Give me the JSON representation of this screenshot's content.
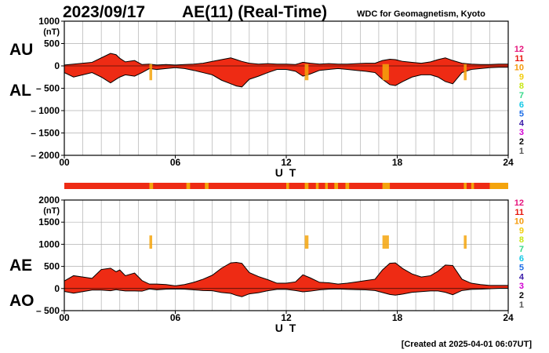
{
  "header": {
    "date": "2023/09/17",
    "title": "AE(11) (Real-Time)",
    "source": "WDC for Geomagnetism, Kyoto"
  },
  "footer": {
    "created": "[Created at 2025-04-01 06:07UT]"
  },
  "colors": {
    "fill_main": "#ee2b14",
    "fill_alt": "#f4a40c",
    "stations": [
      "#cccccc",
      "#555555",
      "#000000",
      "#d200d2",
      "#3b1ca8",
      "#1e6ee6",
      "#14c8e6",
      "#36d98a",
      "#c8e614",
      "#f2cc0c",
      "#f49a0c",
      "#e8170c",
      "#e6147c"
    ]
  },
  "station_count_labels": [
    "12",
    "11",
    "10",
    "9",
    "8",
    "7",
    "6",
    "5",
    "4",
    "3",
    "2",
    "1"
  ],
  "chart_data": [
    {
      "type": "area",
      "panel": "AU-AL",
      "series_labels": [
        "AU",
        "AL"
      ],
      "ylabel": "(nT)",
      "xlabel": "U T",
      "xlim": [
        0,
        24
      ],
      "ylim": [
        -2000,
        1000
      ],
      "yticks": [
        1000,
        500,
        0,
        -500,
        -1000,
        -1500,
        -2000
      ],
      "ytick_labels": [
        "1000",
        "500",
        "0",
        "– 500",
        "– 1000",
        "– 1500",
        "– 2000"
      ],
      "xticks": [
        0,
        6,
        12,
        18,
        24
      ],
      "xtick_labels": [
        "00",
        "06",
        "12",
        "18",
        "24"
      ],
      "grid": true,
      "x": [
        0,
        0.5,
        1,
        1.5,
        2,
        2.5,
        2.8,
        3,
        3.3,
        3.8,
        4.2,
        4.6,
        5,
        5.5,
        6,
        6.5,
        7,
        7.5,
        8,
        8.5,
        9,
        9.3,
        9.6,
        10,
        10.5,
        11,
        11.5,
        12,
        12.5,
        12.9,
        13.3,
        13.8,
        14.3,
        14.8,
        15.3,
        15.8,
        16.3,
        16.8,
        17.2,
        17.6,
        17.9,
        18.3,
        18.8,
        19.3,
        19.8,
        20.2,
        20.6,
        21,
        21.5,
        22,
        22.5,
        23,
        23.5,
        24
      ],
      "AU": [
        20,
        40,
        60,
        80,
        180,
        280,
        250,
        170,
        90,
        120,
        30,
        40,
        20,
        30,
        20,
        30,
        40,
        60,
        100,
        140,
        180,
        140,
        100,
        60,
        40,
        50,
        40,
        40,
        30,
        80,
        60,
        40,
        50,
        40,
        40,
        50,
        60,
        60,
        120,
        150,
        140,
        100,
        80,
        60,
        90,
        140,
        180,
        120,
        60,
        40,
        30,
        30,
        40,
        40
      ],
      "AL": [
        -150,
        -250,
        -200,
        -150,
        -250,
        -380,
        -300,
        -250,
        -200,
        -230,
        -150,
        -60,
        -80,
        -60,
        -40,
        -60,
        -100,
        -150,
        -200,
        -320,
        -400,
        -450,
        -470,
        -300,
        -230,
        -150,
        -80,
        -80,
        -120,
        -230,
        -180,
        -100,
        -80,
        -60,
        -80,
        -100,
        -120,
        -150,
        -300,
        -420,
        -440,
        -350,
        -250,
        -200,
        -200,
        -250,
        -350,
        -400,
        -150,
        -80,
        -60,
        -40,
        -30,
        -30
      ]
    },
    {
      "type": "area",
      "panel": "AE-AO",
      "series_labels": [
        "AE",
        "AO"
      ],
      "ylabel": "(nT)",
      "xlabel": "U T",
      "xlim": [
        0,
        24
      ],
      "ylim": [
        -500,
        2000
      ],
      "yticks": [
        2000,
        1500,
        1000,
        500,
        0,
        -500
      ],
      "ytick_labels": [
        "2000",
        "1500",
        "1000",
        "500",
        "0",
        "– 500"
      ],
      "xticks": [
        0,
        6,
        12,
        18,
        24
      ],
      "xtick_labels": [
        "00",
        "06",
        "12",
        "18",
        "24"
      ],
      "grid": true,
      "x": [
        0,
        0.5,
        1,
        1.5,
        2,
        2.5,
        2.8,
        3,
        3.3,
        3.8,
        4.2,
        4.6,
        5,
        5.5,
        6,
        6.5,
        7,
        7.5,
        8,
        8.5,
        9,
        9.3,
        9.6,
        10,
        10.5,
        11,
        11.5,
        12,
        12.5,
        12.9,
        13.3,
        13.8,
        14.3,
        14.8,
        15.3,
        15.8,
        16.3,
        16.8,
        17.2,
        17.6,
        17.9,
        18.3,
        18.8,
        19.3,
        19.8,
        20.2,
        20.6,
        21,
        21.5,
        22,
        22.5,
        23,
        23.5,
        24
      ],
      "AE": [
        170,
        290,
        260,
        230,
        430,
        460,
        380,
        420,
        290,
        350,
        180,
        100,
        100,
        90,
        60,
        90,
        140,
        210,
        300,
        460,
        580,
        590,
        570,
        360,
        270,
        200,
        120,
        120,
        150,
        310,
        240,
        140,
        130,
        100,
        120,
        150,
        180,
        210,
        420,
        570,
        580,
        450,
        330,
        260,
        290,
        390,
        530,
        520,
        210,
        120,
        90,
        70,
        70,
        70
      ],
      "AO": [
        -65,
        -105,
        -70,
        -35,
        -35,
        -50,
        -25,
        -40,
        -55,
        -55,
        -60,
        -10,
        -30,
        -15,
        -10,
        -15,
        -30,
        -45,
        -50,
        -90,
        -110,
        -155,
        -185,
        -120,
        -95,
        -50,
        -20,
        -20,
        -45,
        -75,
        -60,
        -30,
        -15,
        -10,
        -20,
        -25,
        -30,
        -45,
        -90,
        -135,
        -150,
        -125,
        -85,
        -70,
        -55,
        -55,
        -85,
        -140,
        -45,
        -20,
        -15,
        -5,
        5,
        5
      ]
    }
  ]
}
